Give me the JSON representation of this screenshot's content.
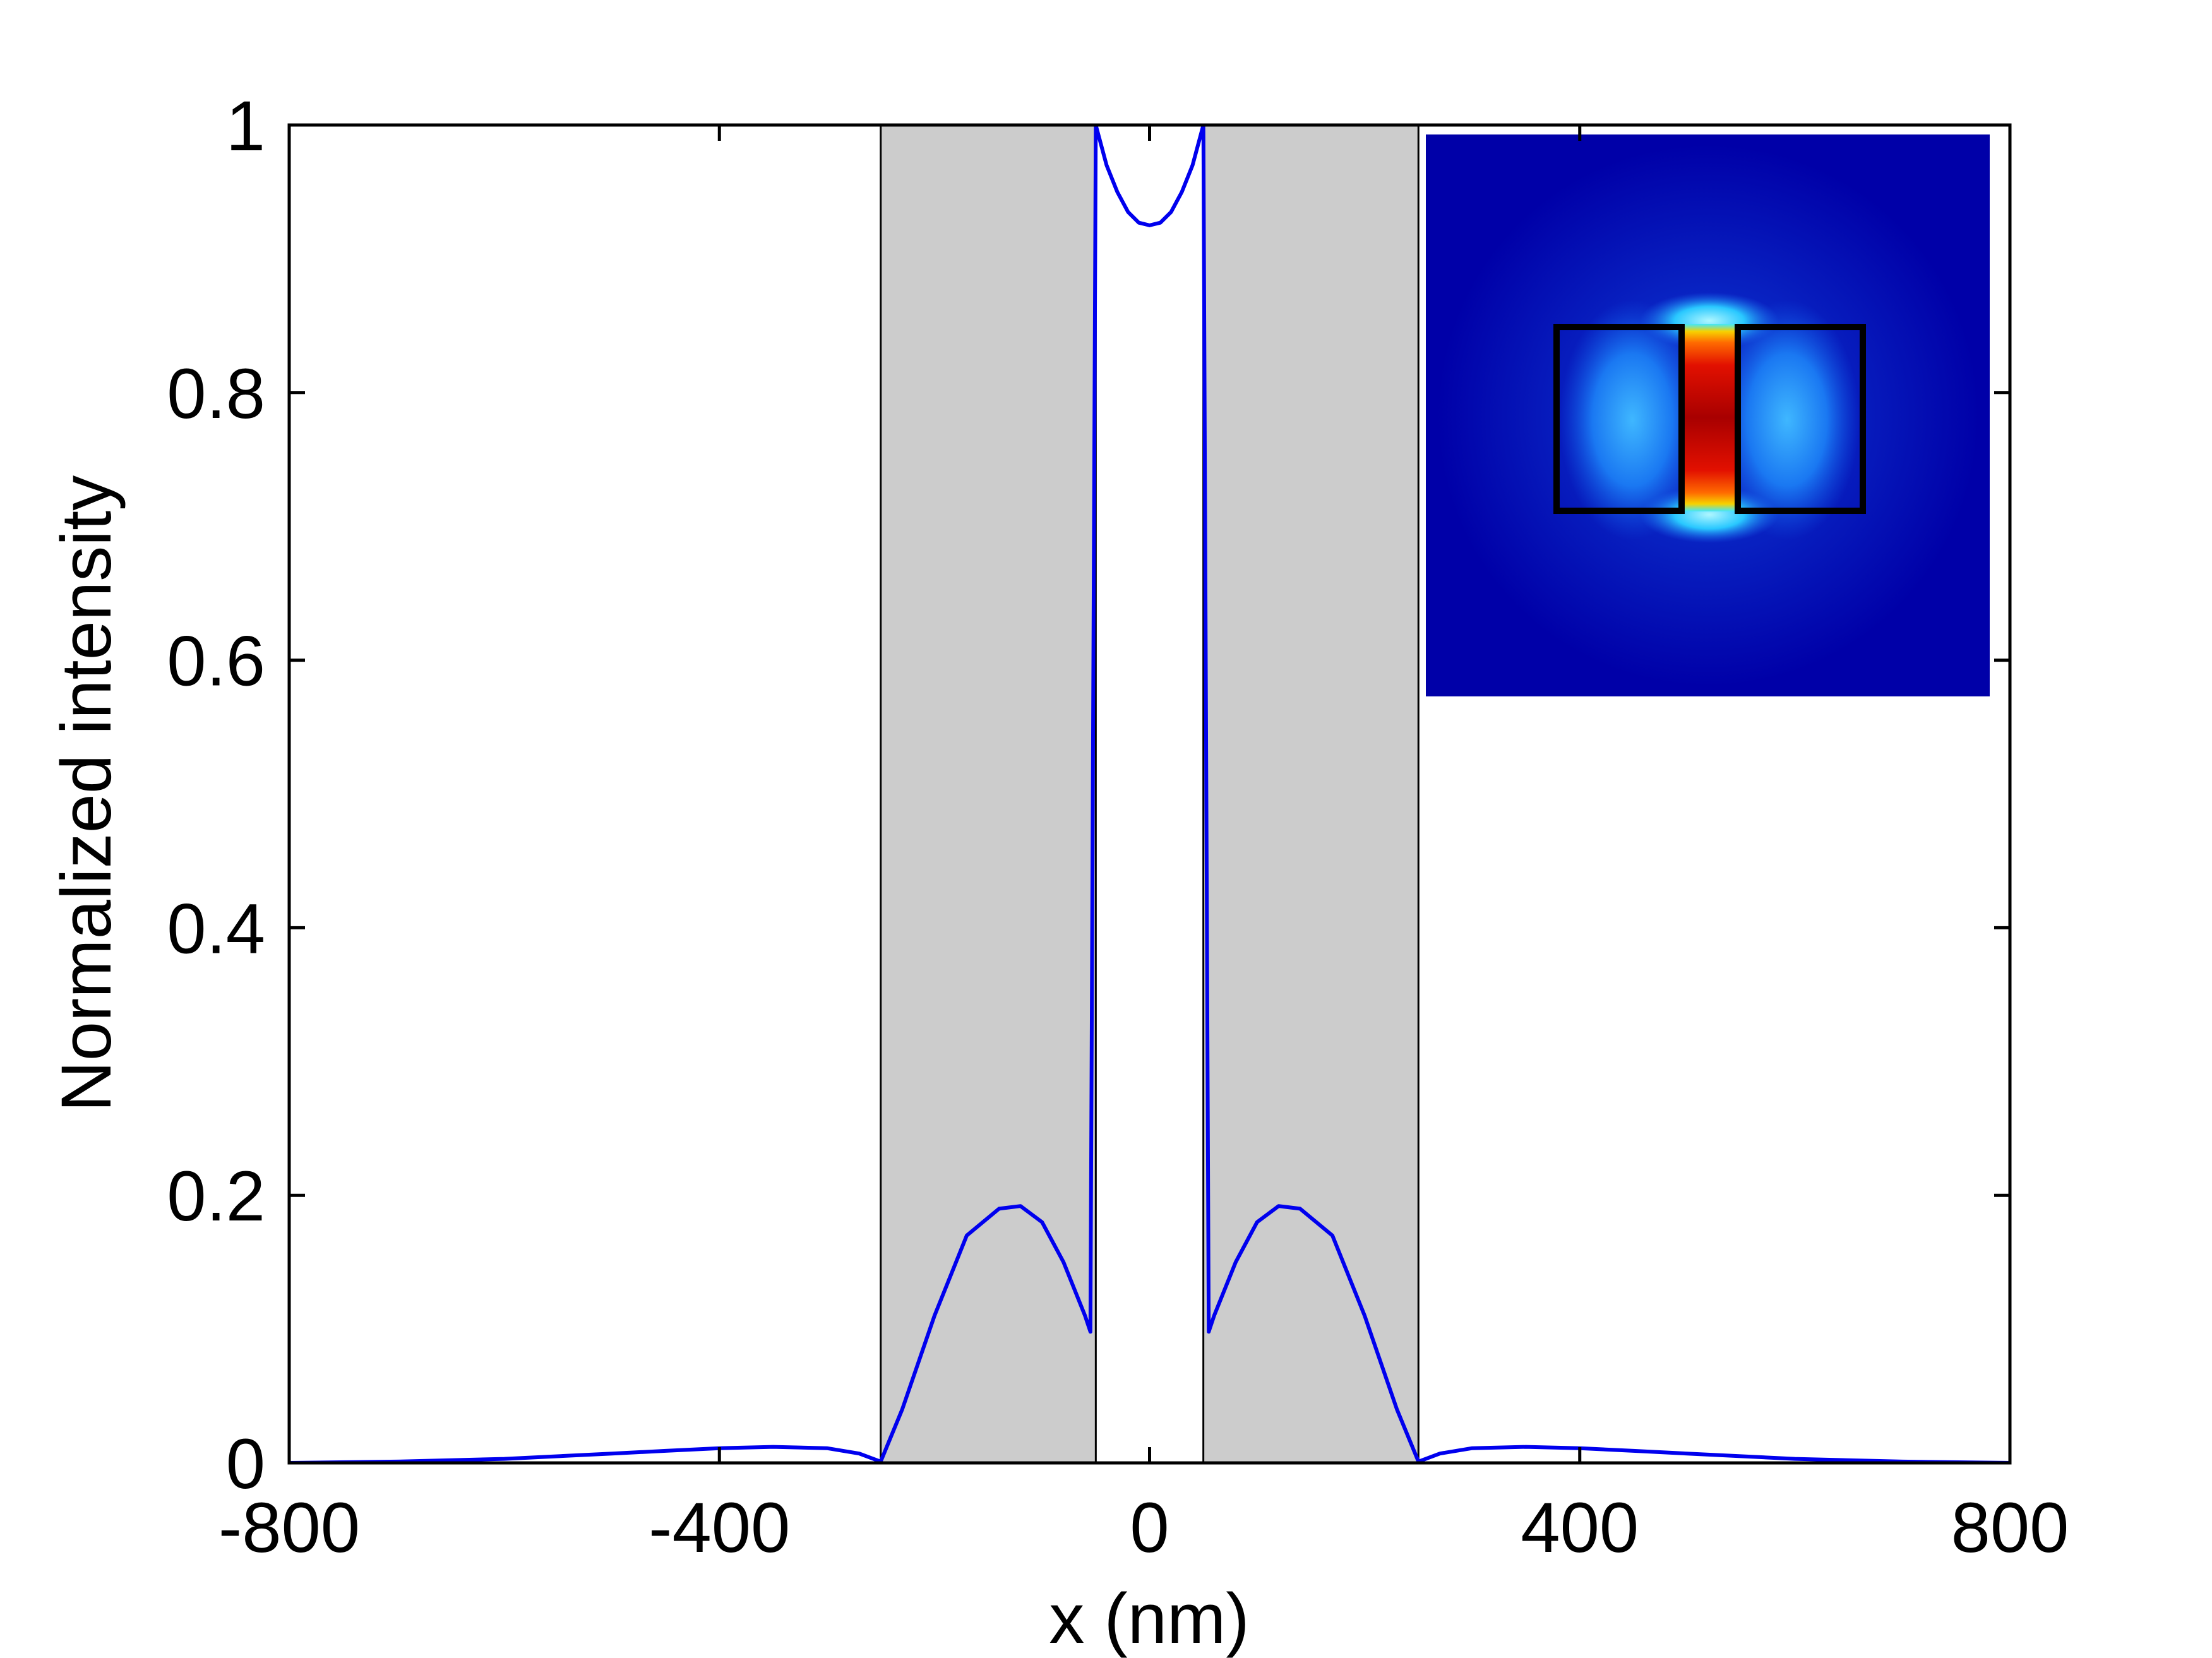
{
  "chart_data": {
    "type": "line",
    "xlabel": "x (nm)",
    "ylabel": "Normalized intensity",
    "xlim": [
      -800,
      800
    ],
    "ylim": [
      0,
      1
    ],
    "xticks": [
      -800,
      -400,
      0,
      400,
      800
    ],
    "yticks": [
      0,
      0.2,
      0.4,
      0.6,
      0.8,
      1
    ],
    "xtick_labels": [
      "-800",
      "-400",
      "0",
      "400",
      "800"
    ],
    "ytick_labels": [
      "0",
      "0.2",
      "0.4",
      "0.6",
      "0.8",
      "1"
    ],
    "grid": false,
    "legend": "none",
    "shaded_regions": [
      {
        "x_start": -250,
        "x_end": -50,
        "color": "#cccccc"
      },
      {
        "x_start": 50,
        "x_end": 250,
        "color": "#cccccc"
      }
    ],
    "series": [
      {
        "color": "#0000ee",
        "x": [
          -800,
          -700,
          -600,
          -500,
          -450,
          -400,
          -350,
          -300,
          -270,
          -250,
          -230,
          -200,
          -170,
          -140,
          -120,
          -100,
          -80,
          -60,
          -55,
          -50,
          -40,
          -30,
          -20,
          -10,
          0,
          10,
          20,
          30,
          40,
          50,
          55,
          60,
          80,
          100,
          120,
          140,
          170,
          200,
          230,
          250,
          270,
          300,
          350,
          400,
          450,
          500,
          600,
          700,
          800
        ],
        "y": [
          0,
          0.001,
          0.003,
          0.007,
          0.009,
          0.011,
          0.012,
          0.011,
          0.007,
          0.001,
          0.04,
          0.11,
          0.17,
          0.19,
          0.192,
          0.18,
          0.15,
          0.11,
          0.098,
          1.0,
          0.97,
          0.95,
          0.935,
          0.927,
          0.925,
          0.927,
          0.935,
          0.95,
          0.97,
          1.0,
          0.098,
          0.11,
          0.15,
          0.18,
          0.192,
          0.19,
          0.17,
          0.11,
          0.04,
          0.001,
          0.007,
          0.011,
          0.012,
          0.011,
          0.009,
          0.007,
          0.003,
          0.001,
          0
        ]
      }
    ],
    "inset": {
      "type": "heatmap",
      "colormap": "jet",
      "description_colors": {
        "background": "#0000a8",
        "hot": "#b00000"
      }
    }
  }
}
